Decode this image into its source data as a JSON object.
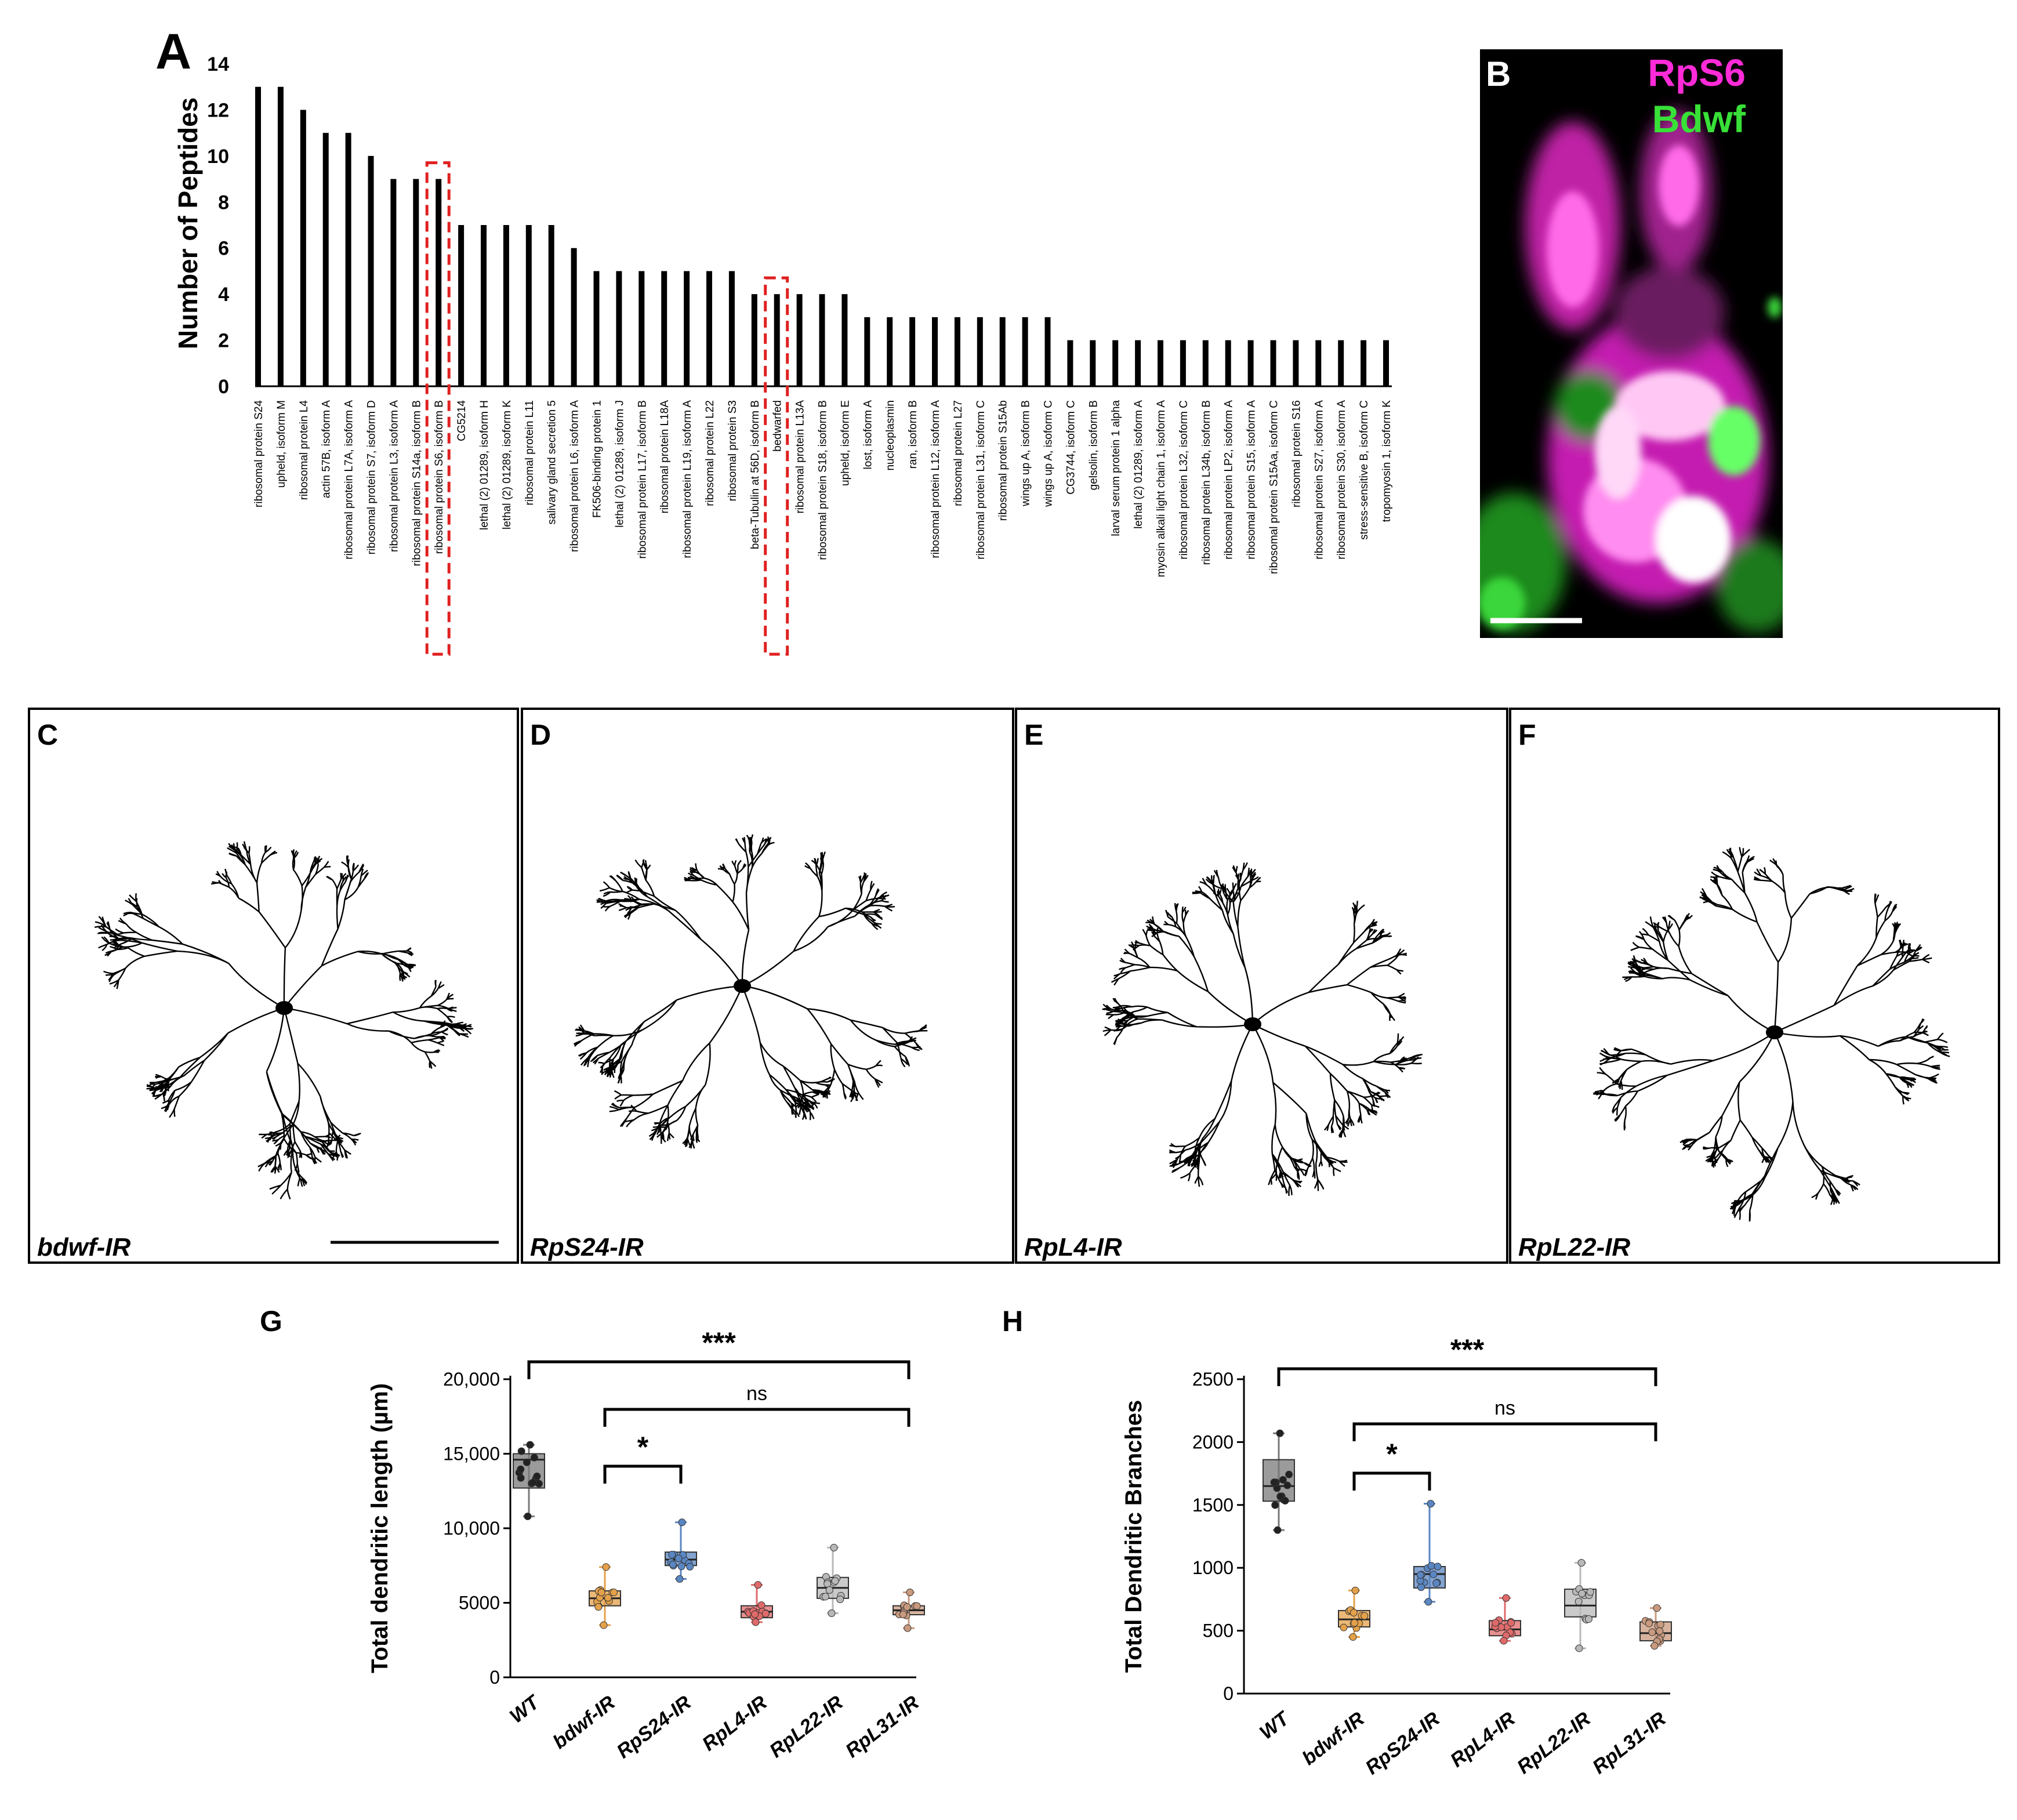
{
  "colors": {
    "wt": "#7a7a7a",
    "bdwf": "#e4a04a",
    "rps24": "#5a86c2",
    "rpl4": "#e06a6a",
    "rpl22": "#b8b8b8",
    "rpl31": "#c99a7e",
    "highlight": "#e02020",
    "magenta": "#ff2bd8",
    "green": "#38e038"
  },
  "panelA": {
    "letter": "A",
    "ylabel": "Number of Peptides",
    "yticks": [
      "0",
      "2",
      "4",
      "6",
      "8",
      "10",
      "12",
      "14"
    ]
  },
  "panelB": {
    "letter": "B",
    "channels": [
      {
        "name": "RpS6",
        "color": "#ff2bd8"
      },
      {
        "name": "Bdwf",
        "color": "#38e038"
      }
    ]
  },
  "neurons": [
    {
      "letter": "C",
      "label": "bdwf-IR"
    },
    {
      "letter": "D",
      "label": "RpS24-IR"
    },
    {
      "letter": "E",
      "label": "RpL4-IR"
    },
    {
      "letter": "F",
      "label": "RpL22-IR"
    }
  ],
  "chart_data": [
    {
      "type": "bar",
      "panel": "A",
      "ylabel": "Number of Peptides",
      "ylim": [
        0,
        14
      ],
      "highlighted": [
        "ribosomal protein S6, isoform B",
        "bedwarfed"
      ],
      "categories": [
        "ribosomal protein S24",
        "upheld, isoform M",
        "ribosomal protein L4",
        "actin 57B, isoform A",
        "ribosomal protein L7A, isoform A",
        "ribosomal protein S7, isoform D",
        "ribosomal protein L3, isoform A",
        "ribosomal protein S14a, isoform B",
        "ribosomal protein S6, isoform B",
        "CG5214",
        "lethal (2) 01289, isoform H",
        "lethal (2) 01289, isoform K",
        "ribosomal protein L11",
        "salivary gland secretion 5",
        "ribosomal protein L6, isoform A",
        "FK506-binding protein 1",
        "lethal (2) 01289, isoform J",
        "ribosomal protein L17, isoform B",
        "ribosomal protein L18A",
        "ribosomal protein L19, isoform A",
        "ribosomal protein L22",
        "ribosomal protein S3",
        "beta-Tubulin at 56D, isoform B",
        "bedwarfed",
        "ribosomal protein L13A",
        "ribosomal protein S18, isoform B",
        "upheld, isoform E",
        "lost, isoform A",
        "nucleoplasmin",
        "ran, isoform B",
        "ribosomal protein L12, isoform A",
        "ribosomal protein L27",
        "ribosomal protein L31, isoform C",
        "ribosomal protein S15Ab",
        "wings up A, isoform B",
        "wings up A, isoform C",
        "CG3744, isoform C",
        "gelsolin, isoform B",
        "larval serum protein 1 alpha",
        "lethal (2) 01289, isoform A",
        "myosin alkali light chain 1, isoform A",
        "ribosomal protein L32, isoform C",
        "ribosomal protein L34b, isoform B",
        "ribosomal protein LP2, isoform A",
        "ribosomal protein S15, isoform A",
        "ribosomal protein S15Aa, isoform C",
        "ribosomal protein S16",
        "ribosomal protein S27, isoform A",
        "ribosomal protein S30, isoform A",
        "stress-sensitive B, isoform C",
        "tropomyosin 1, isoform K"
      ],
      "values": [
        13,
        13,
        12,
        11,
        11,
        10,
        9,
        9,
        9,
        7,
        7,
        7,
        7,
        7,
        6,
        5,
        5,
        5,
        5,
        5,
        5,
        5,
        4,
        4,
        4,
        4,
        4,
        3,
        3,
        3,
        3,
        3,
        3,
        3,
        3,
        3,
        2,
        2,
        2,
        2,
        2,
        2,
        2,
        2,
        2,
        2,
        2,
        2,
        2,
        2,
        2
      ]
    },
    {
      "type": "box",
      "panel": "G",
      "ylabel": "Total dendritic length (µm)",
      "ylim": [
        0,
        20000
      ],
      "yticks": [
        "0",
        "5000",
        "10,000",
        "15,000",
        "20,000"
      ],
      "categories": [
        "WT",
        "bdwf-IR",
        "RpS24-IR",
        "RpL4-IR",
        "RpL22-IR",
        "RpL31-IR"
      ],
      "boxes": [
        {
          "min": 10800,
          "q1": 12700,
          "median": 14600,
          "q3": 15000,
          "max": 15600
        },
        {
          "min": 3500,
          "q1": 4800,
          "median": 5300,
          "q3": 5800,
          "max": 7400
        },
        {
          "min": 6600,
          "q1": 7500,
          "median": 7900,
          "q3": 8400,
          "max": 10400
        },
        {
          "min": 3700,
          "q1": 4000,
          "median": 4400,
          "q3": 4800,
          "max": 6200
        },
        {
          "min": 4300,
          "q1": 5300,
          "median": 6000,
          "q3": 6700,
          "max": 8700
        },
        {
          "min": 3300,
          "q1": 4200,
          "median": 4500,
          "q3": 4800,
          "max": 5700
        }
      ],
      "annotations": [
        {
          "text": "***",
          "from": "WT",
          "to": "RpL31-IR"
        },
        {
          "text": "ns",
          "from": "bdwf-IR",
          "to": "RpL31-IR"
        },
        {
          "text": "*",
          "from": "bdwf-IR",
          "to": "RpS24-IR"
        }
      ]
    },
    {
      "type": "box",
      "panel": "H",
      "ylabel": "Total Dendritic Branches",
      "ylim": [
        0,
        2500
      ],
      "yticks": [
        "0",
        "500",
        "1000",
        "1500",
        "2000",
        "2500"
      ],
      "categories": [
        "WT",
        "bdwf-IR",
        "RpS24-IR",
        "RpL4-IR",
        "RpL22-IR",
        "RpL31-IR"
      ],
      "boxes": [
        {
          "min": 1300,
          "q1": 1530,
          "median": 1650,
          "q3": 1860,
          "max": 2070
        },
        {
          "min": 450,
          "q1": 530,
          "median": 590,
          "q3": 660,
          "max": 820
        },
        {
          "min": 730,
          "q1": 840,
          "median": 950,
          "q3": 1010,
          "max": 1510
        },
        {
          "min": 420,
          "q1": 460,
          "median": 510,
          "q3": 580,
          "max": 760
        },
        {
          "min": 360,
          "q1": 610,
          "median": 700,
          "q3": 830,
          "max": 1040
        },
        {
          "min": 380,
          "q1": 420,
          "median": 480,
          "q3": 570,
          "max": 680
        }
      ],
      "annotations": [
        {
          "text": "***",
          "from": "WT",
          "to": "RpL31-IR"
        },
        {
          "text": "ns",
          "from": "bdwf-IR",
          "to": "RpL31-IR"
        },
        {
          "text": "*",
          "from": "bdwf-IR",
          "to": "RpS24-IR"
        }
      ]
    }
  ]
}
